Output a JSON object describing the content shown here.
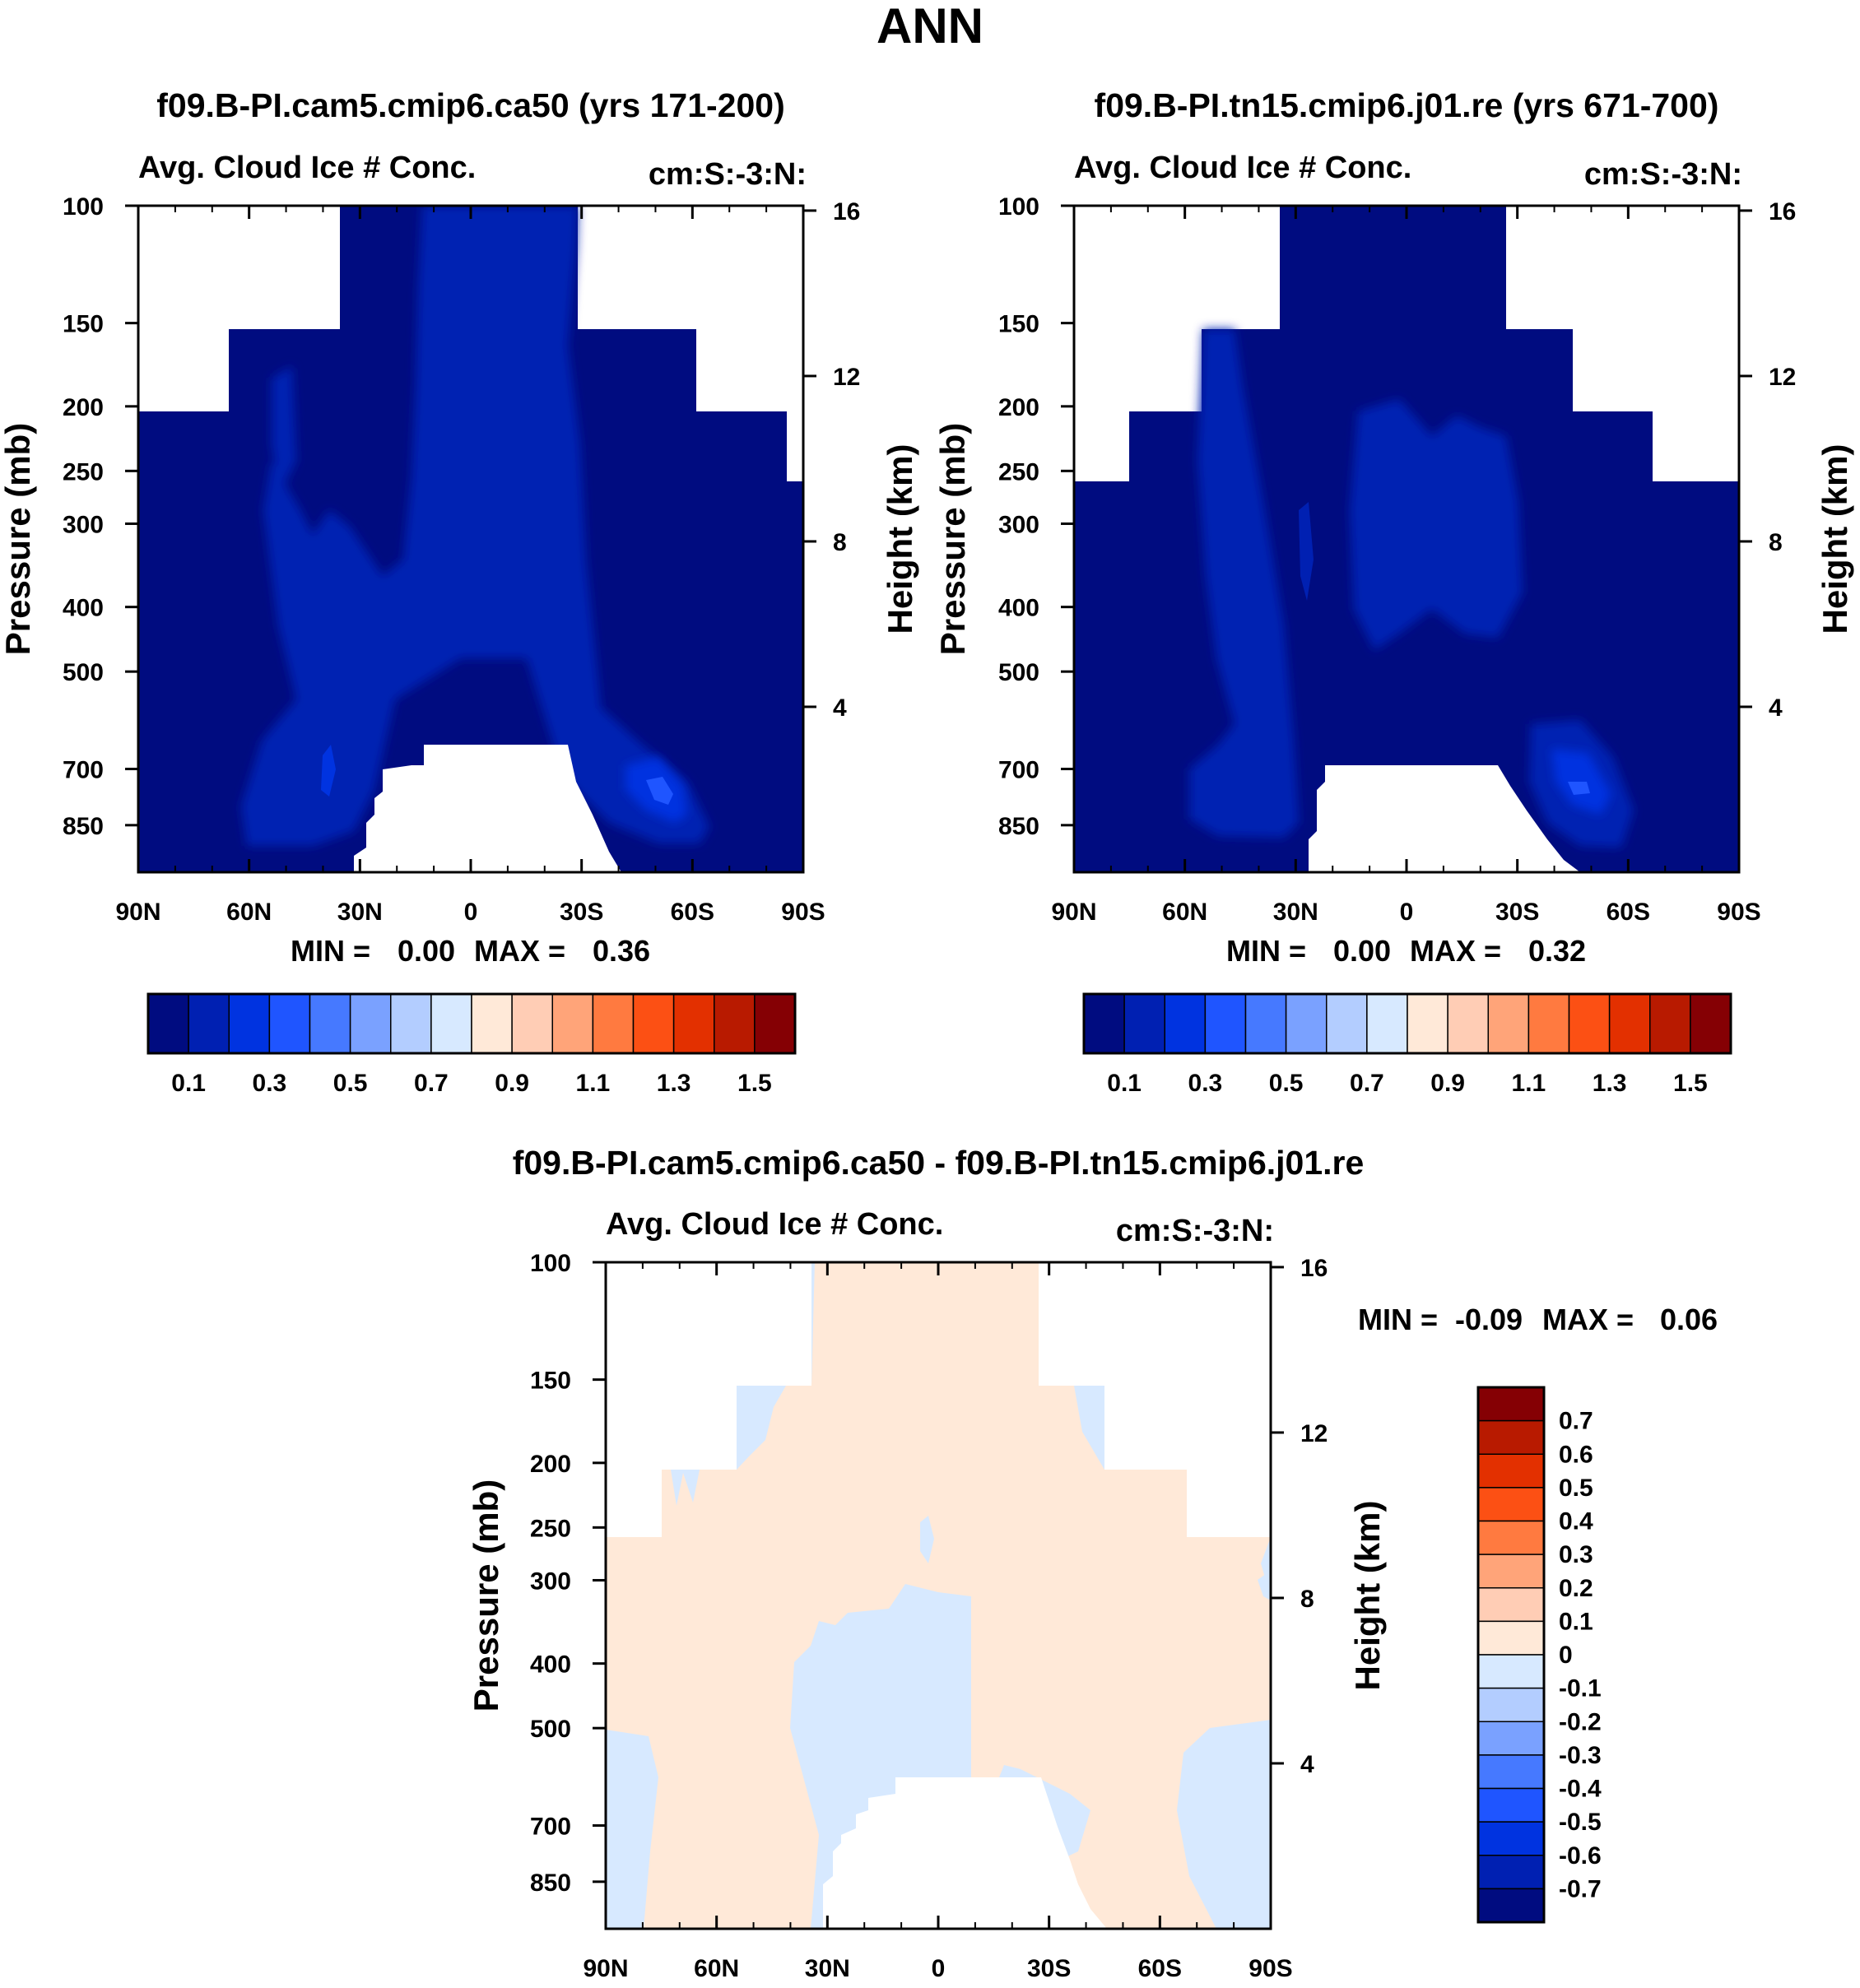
{
  "main_title": "ANN",
  "chart_data": [
    {
      "type": "heatmap",
      "id": "panel1",
      "title": "f09.B-PI.cam5.cmip6.ca50 (yrs 171-200)",
      "subtitle_left": "Avg. Cloud Ice # Conc.",
      "subtitle_right": "cm:S:-3:N:",
      "ylabel": "Pressure (mb)",
      "ylabel_right": "Height (km)",
      "x_tick_labels": [
        "90N",
        "60N",
        "30N",
        "0",
        "30S",
        "60S",
        "90S"
      ],
      "x_range": [
        90,
        -90
      ],
      "y_ticks": [
        100,
        150,
        200,
        250,
        300,
        400,
        500,
        700,
        850
      ],
      "y_range": [
        100,
        1000
      ],
      "height_ticks_km": [
        4,
        8,
        12,
        16
      ],
      "stats": {
        "min_label": "MIN =",
        "min_value": "0.00",
        "max_label": "MAX =",
        "max_value": "0.36"
      },
      "colorbar": {
        "orientation": "horizontal",
        "colors": [
          "#000c80",
          "#0020b2",
          "#0033e0",
          "#1f55ff",
          "#4679ff",
          "#7aa1ff",
          "#b3cdff",
          "#d7e9ff",
          "#ffe9d8",
          "#ffcdb5",
          "#ffa479",
          "#ff7a40",
          "#fc5014",
          "#e33000",
          "#b81a00",
          "#850004"
        ],
        "labels": [
          "0.1",
          "0.3",
          "0.5",
          "0.7",
          "0.9",
          "1.1",
          "1.3",
          "1.5"
        ]
      },
      "max_value": 0.36
    },
    {
      "type": "heatmap",
      "id": "panel2",
      "title": "f09.B-PI.tn15.cmip6.j01.re (yrs 671-700)",
      "subtitle_left": "Avg. Cloud Ice # Conc.",
      "subtitle_right": "cm:S:-3:N:",
      "ylabel": "Pressure (mb)",
      "ylabel_right": "Height (km)",
      "x_tick_labels": [
        "90N",
        "60N",
        "30N",
        "0",
        "30S",
        "60S",
        "90S"
      ],
      "x_range": [
        90,
        -90
      ],
      "y_ticks": [
        100,
        150,
        200,
        250,
        300,
        400,
        500,
        700,
        850
      ],
      "y_range": [
        100,
        1000
      ],
      "height_ticks_km": [
        4,
        8,
        12,
        16
      ],
      "stats": {
        "min_label": "MIN =",
        "min_value": "0.00",
        "max_label": "MAX =",
        "max_value": "0.32"
      },
      "colorbar": {
        "orientation": "horizontal",
        "colors": [
          "#000c80",
          "#0020b2",
          "#0033e0",
          "#1f55ff",
          "#4679ff",
          "#7aa1ff",
          "#b3cdff",
          "#d7e9ff",
          "#ffe9d8",
          "#ffcdb5",
          "#ffa479",
          "#ff7a40",
          "#fc5014",
          "#e33000",
          "#b81a00",
          "#850004"
        ],
        "labels": [
          "0.1",
          "0.3",
          "0.5",
          "0.7",
          "0.9",
          "1.1",
          "1.3",
          "1.5"
        ]
      },
      "max_value": 0.32
    },
    {
      "type": "heatmap",
      "id": "panel3",
      "title": "f09.B-PI.cam5.cmip6.ca50 - f09.B-PI.tn15.cmip6.j01.re",
      "subtitle_left": "Avg. Cloud Ice # Conc.",
      "subtitle_right": "cm:S:-3:N:",
      "ylabel": "Pressure (mb)",
      "ylabel_right": "Height (km)",
      "x_tick_labels": [
        "90N",
        "60N",
        "30N",
        "0",
        "30S",
        "60S",
        "90S"
      ],
      "x_range": [
        90,
        -90
      ],
      "y_ticks": [
        100,
        150,
        200,
        250,
        300,
        400,
        500,
        700,
        850
      ],
      "y_range": [
        100,
        1000
      ],
      "height_ticks_km": [
        4,
        8,
        12,
        16
      ],
      "stats": {
        "min_label": "MIN =",
        "min_value": "-0.09",
        "max_label": "MAX =",
        "max_value": "0.06"
      },
      "colorbar": {
        "orientation": "vertical",
        "colors": [
          "#850004",
          "#b81a00",
          "#e33000",
          "#fc5014",
          "#ff7a40",
          "#ffa479",
          "#ffcdb5",
          "#ffe9d8",
          "#d7e9ff",
          "#b3cdff",
          "#7aa1ff",
          "#4679ff",
          "#1f55ff",
          "#0033e0",
          "#0020b2",
          "#000c80"
        ],
        "labels": [
          "0.7",
          "0.6",
          "0.5",
          "0.4",
          "0.3",
          "0.2",
          "0.1",
          "0",
          "-0.1",
          "-0.2",
          "-0.3",
          "-0.4",
          "-0.5",
          "-0.6",
          "-0.7"
        ]
      },
      "min_value": -0.09,
      "max_value": 0.06
    }
  ]
}
